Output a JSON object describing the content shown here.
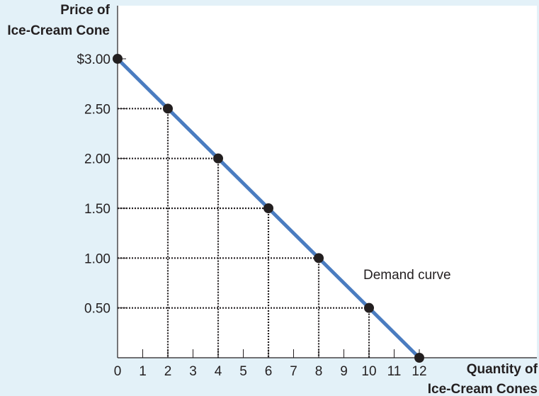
{
  "chart_data": {
    "type": "line",
    "ylabel": [
      "Price of",
      "Ice-Cream Cone"
    ],
    "xlabel": [
      "Quantity of",
      "Ice-Cream Cones"
    ],
    "x_ticks": [
      0,
      1,
      2,
      3,
      4,
      5,
      6,
      7,
      8,
      9,
      10,
      11,
      12
    ],
    "y_ticks": [
      "$3.00",
      "2.50",
      "2.00",
      "1.50",
      "1.00",
      "0.50"
    ],
    "y_tick_values": [
      3.0,
      2.5,
      2.0,
      1.5,
      1.0,
      0.5
    ],
    "xlim": [
      0,
      12
    ],
    "ylim": [
      0,
      3.0
    ],
    "series": [
      {
        "name": "Demand curve",
        "x": [
          0,
          2,
          4,
          6,
          8,
          10,
          12
        ],
        "y": [
          3.0,
          2.5,
          2.0,
          1.5,
          1.0,
          0.5,
          0.0
        ]
      }
    ],
    "annotation": "Demand curve",
    "guide_lines": "dotted",
    "colors": {
      "background": "#e3f1f8",
      "plot_background": "#ffffff",
      "line": "#4a7cc0",
      "marker": "#231f20",
      "axis": "#231f20"
    }
  }
}
